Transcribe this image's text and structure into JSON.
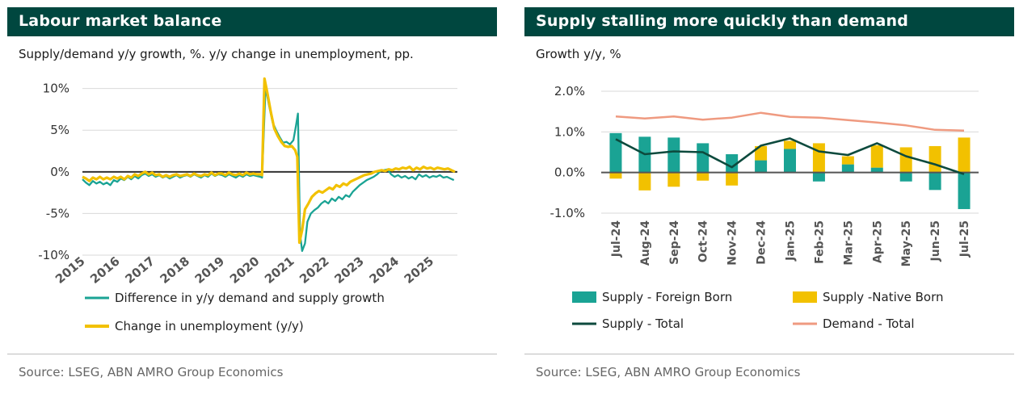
{
  "panels": [
    {
      "title": "Labour market balance",
      "subtitle": "Supply/demand y/y growth, %. y/y change in unemployment, pp.",
      "source": "Source: LSEG, ABN AMRO Group Economics"
    },
    {
      "title": "Supply stalling more quickly than demand",
      "subtitle": "Growth y/y, %",
      "source": "Source: LSEG, ABN AMRO Group Economics"
    }
  ],
  "chart_data": [
    {
      "type": "line",
      "title": "Labour market balance",
      "subtitle": "Supply/demand y/y growth, %. y/y change in unemployment, pp.",
      "xlabel": "",
      "ylabel": "",
      "x_tick_labels": [
        "2015",
        "2016",
        "2017",
        "2018",
        "2019",
        "2020",
        "2021",
        "2022",
        "2023",
        "2024",
        "2025"
      ],
      "y_tick_labels": [
        "10%",
        "5%",
        "0%",
        "-5%",
        "-10%"
      ],
      "y_ticks": [
        10,
        5,
        0,
        -5,
        -10
      ],
      "xlim": [
        2015.0,
        2025.75
      ],
      "ylim": [
        -10,
        12
      ],
      "grid": "horizontal",
      "legend_position": "bottom",
      "colors": {
        "difference": "#1aa394",
        "unemployment": "#f2c100"
      },
      "series": [
        {
          "name": "Difference in y/y demand and supply growth",
          "points": [
            [
              2015.0,
              -0.9
            ],
            [
              2015.1,
              -1.3
            ],
            [
              2015.2,
              -1.6
            ],
            [
              2015.3,
              -1.1
            ],
            [
              2015.4,
              -1.4
            ],
            [
              2015.5,
              -1.2
            ],
            [
              2015.6,
              -1.5
            ],
            [
              2015.7,
              -1.3
            ],
            [
              2015.8,
              -1.6
            ],
            [
              2015.9,
              -1.0
            ],
            [
              2016.0,
              -1.2
            ],
            [
              2016.1,
              -0.8
            ],
            [
              2016.2,
              -1.0
            ],
            [
              2016.3,
              -0.6
            ],
            [
              2016.4,
              -0.9
            ],
            [
              2016.5,
              -0.5
            ],
            [
              2016.6,
              -0.8
            ],
            [
              2016.7,
              -0.4
            ],
            [
              2016.8,
              -0.2
            ],
            [
              2016.9,
              -0.5
            ],
            [
              2017.0,
              -0.3
            ],
            [
              2017.1,
              -0.6
            ],
            [
              2017.2,
              -0.4
            ],
            [
              2017.3,
              -0.7
            ],
            [
              2017.4,
              -0.5
            ],
            [
              2017.5,
              -0.8
            ],
            [
              2017.6,
              -0.6
            ],
            [
              2017.7,
              -0.4
            ],
            [
              2017.8,
              -0.7
            ],
            [
              2017.9,
              -0.5
            ],
            [
              2018.0,
              -0.4
            ],
            [
              2018.1,
              -0.6
            ],
            [
              2018.2,
              -0.3
            ],
            [
              2018.3,
              -0.5
            ],
            [
              2018.4,
              -0.7
            ],
            [
              2018.5,
              -0.4
            ],
            [
              2018.6,
              -0.6
            ],
            [
              2018.7,
              -0.2
            ],
            [
              2018.8,
              -0.5
            ],
            [
              2018.9,
              -0.3
            ],
            [
              2019.0,
              -0.4
            ],
            [
              2019.1,
              -0.6
            ],
            [
              2019.2,
              -0.3
            ],
            [
              2019.3,
              -0.5
            ],
            [
              2019.4,
              -0.7
            ],
            [
              2019.5,
              -0.4
            ],
            [
              2019.6,
              -0.6
            ],
            [
              2019.7,
              -0.3
            ],
            [
              2019.8,
              -0.5
            ],
            [
              2019.9,
              -0.4
            ],
            [
              2020.0,
              -0.5
            ],
            [
              2020.1,
              -0.6
            ],
            [
              2020.15,
              -0.7
            ],
            [
              2020.25,
              10.2
            ],
            [
              2020.35,
              8.0
            ],
            [
              2020.45,
              6.0
            ],
            [
              2020.55,
              5.0
            ],
            [
              2020.65,
              4.2
            ],
            [
              2020.75,
              3.5
            ],
            [
              2020.85,
              3.6
            ],
            [
              2020.95,
              3.3
            ],
            [
              2021.05,
              3.8
            ],
            [
              2021.12,
              5.5
            ],
            [
              2021.18,
              7.0
            ],
            [
              2021.24,
              -7.5
            ],
            [
              2021.3,
              -9.5
            ],
            [
              2021.38,
              -8.6
            ],
            [
              2021.45,
              -6.0
            ],
            [
              2021.55,
              -5.0
            ],
            [
              2021.65,
              -4.6
            ],
            [
              2021.75,
              -4.3
            ],
            [
              2021.85,
              -3.8
            ],
            [
              2021.95,
              -3.5
            ],
            [
              2022.05,
              -3.8
            ],
            [
              2022.15,
              -3.2
            ],
            [
              2022.25,
              -3.5
            ],
            [
              2022.35,
              -3.0
            ],
            [
              2022.45,
              -3.3
            ],
            [
              2022.55,
              -2.8
            ],
            [
              2022.65,
              -3.0
            ],
            [
              2022.75,
              -2.4
            ],
            [
              2022.85,
              -2.0
            ],
            [
              2022.95,
              -1.6
            ],
            [
              2023.05,
              -1.3
            ],
            [
              2023.15,
              -1.0
            ],
            [
              2023.25,
              -0.8
            ],
            [
              2023.35,
              -0.6
            ],
            [
              2023.45,
              -0.3
            ],
            [
              2023.55,
              0.1
            ],
            [
              2023.65,
              0.2
            ],
            [
              2023.75,
              0.3
            ],
            [
              2023.85,
              -0.3
            ],
            [
              2023.95,
              -0.6
            ],
            [
              2024.05,
              -0.4
            ],
            [
              2024.15,
              -0.7
            ],
            [
              2024.25,
              -0.5
            ],
            [
              2024.35,
              -0.8
            ],
            [
              2024.45,
              -0.6
            ],
            [
              2024.55,
              -0.9
            ],
            [
              2024.65,
              -0.3
            ],
            [
              2024.75,
              -0.6
            ],
            [
              2024.85,
              -0.4
            ],
            [
              2024.95,
              -0.7
            ],
            [
              2025.05,
              -0.5
            ],
            [
              2025.15,
              -0.6
            ],
            [
              2025.25,
              -0.4
            ],
            [
              2025.35,
              -0.7
            ],
            [
              2025.45,
              -0.6
            ],
            [
              2025.55,
              -0.8
            ],
            [
              2025.65,
              -1.0
            ]
          ]
        },
        {
          "name": "Change in unemployment (y/y)",
          "points": [
            [
              2015.0,
              -0.6
            ],
            [
              2015.1,
              -0.8
            ],
            [
              2015.2,
              -1.1
            ],
            [
              2015.3,
              -0.7
            ],
            [
              2015.4,
              -0.9
            ],
            [
              2015.5,
              -0.6
            ],
            [
              2015.6,
              -0.9
            ],
            [
              2015.7,
              -0.7
            ],
            [
              2015.8,
              -0.9
            ],
            [
              2015.9,
              -0.6
            ],
            [
              2016.0,
              -0.8
            ],
            [
              2016.1,
              -0.6
            ],
            [
              2016.2,
              -0.9
            ],
            [
              2016.3,
              -0.5
            ],
            [
              2016.4,
              -0.7
            ],
            [
              2016.5,
              -0.3
            ],
            [
              2016.6,
              -0.5
            ],
            [
              2016.7,
              -0.2
            ],
            [
              2016.8,
              0.0
            ],
            [
              2016.9,
              -0.3
            ],
            [
              2017.0,
              -0.1
            ],
            [
              2017.1,
              -0.4
            ],
            [
              2017.2,
              -0.3
            ],
            [
              2017.3,
              -0.6
            ],
            [
              2017.4,
              -0.4
            ],
            [
              2017.5,
              -0.6
            ],
            [
              2017.6,
              -0.4
            ],
            [
              2017.7,
              -0.3
            ],
            [
              2017.8,
              -0.5
            ],
            [
              2017.9,
              -0.4
            ],
            [
              2018.0,
              -0.3
            ],
            [
              2018.1,
              -0.5
            ],
            [
              2018.2,
              -0.2
            ],
            [
              2018.3,
              -0.4
            ],
            [
              2018.4,
              -0.5
            ],
            [
              2018.5,
              -0.3
            ],
            [
              2018.6,
              -0.4
            ],
            [
              2018.7,
              -0.1
            ],
            [
              2018.8,
              -0.4
            ],
            [
              2018.9,
              -0.2
            ],
            [
              2019.0,
              -0.2
            ],
            [
              2019.1,
              -0.4
            ],
            [
              2019.2,
              -0.1
            ],
            [
              2019.3,
              -0.3
            ],
            [
              2019.4,
              -0.4
            ],
            [
              2019.5,
              -0.2
            ],
            [
              2019.6,
              -0.4
            ],
            [
              2019.7,
              -0.1
            ],
            [
              2019.8,
              -0.3
            ],
            [
              2019.9,
              -0.2
            ],
            [
              2020.0,
              -0.3
            ],
            [
              2020.1,
              -0.3
            ],
            [
              2020.15,
              -0.4
            ],
            [
              2020.22,
              11.2
            ],
            [
              2020.3,
              9.5
            ],
            [
              2020.4,
              7.2
            ],
            [
              2020.5,
              5.2
            ],
            [
              2020.6,
              4.3
            ],
            [
              2020.7,
              3.6
            ],
            [
              2020.8,
              3.1
            ],
            [
              2020.9,
              3.0
            ],
            [
              2021.0,
              3.1
            ],
            [
              2021.1,
              2.6
            ],
            [
              2021.16,
              1.8
            ],
            [
              2021.22,
              -8.5
            ],
            [
              2021.3,
              -7.0
            ],
            [
              2021.38,
              -4.5
            ],
            [
              2021.48,
              -3.8
            ],
            [
              2021.58,
              -3.0
            ],
            [
              2021.68,
              -2.6
            ],
            [
              2021.78,
              -2.3
            ],
            [
              2021.88,
              -2.5
            ],
            [
              2021.98,
              -2.2
            ],
            [
              2022.08,
              -1.9
            ],
            [
              2022.18,
              -2.1
            ],
            [
              2022.28,
              -1.6
            ],
            [
              2022.38,
              -1.8
            ],
            [
              2022.48,
              -1.4
            ],
            [
              2022.58,
              -1.6
            ],
            [
              2022.68,
              -1.2
            ],
            [
              2022.78,
              -1.0
            ],
            [
              2022.88,
              -0.8
            ],
            [
              2022.98,
              -0.6
            ],
            [
              2023.08,
              -0.4
            ],
            [
              2023.18,
              -0.3
            ],
            [
              2023.28,
              -0.2
            ],
            [
              2023.38,
              0.0
            ],
            [
              2023.48,
              0.1
            ],
            [
              2023.58,
              0.2
            ],
            [
              2023.68,
              0.1
            ],
            [
              2023.78,
              0.3
            ],
            [
              2023.88,
              0.2
            ],
            [
              2023.98,
              0.4
            ],
            [
              2024.08,
              0.3
            ],
            [
              2024.18,
              0.5
            ],
            [
              2024.28,
              0.4
            ],
            [
              2024.38,
              0.6
            ],
            [
              2024.48,
              0.2
            ],
            [
              2024.58,
              0.5
            ],
            [
              2024.68,
              0.3
            ],
            [
              2024.78,
              0.6
            ],
            [
              2024.88,
              0.4
            ],
            [
              2024.98,
              0.5
            ],
            [
              2025.08,
              0.3
            ],
            [
              2025.18,
              0.5
            ],
            [
              2025.28,
              0.4
            ],
            [
              2025.38,
              0.3
            ],
            [
              2025.48,
              0.4
            ],
            [
              2025.58,
              0.2
            ],
            [
              2025.68,
              0.0
            ]
          ]
        }
      ]
    },
    {
      "type": "bar",
      "stacked": true,
      "title": "Supply stalling more quickly than demand",
      "subtitle": "Growth y/y, %",
      "xlabel": "",
      "ylabel": "",
      "categories": [
        "Jul-24",
        "Aug-24",
        "Sep-24",
        "Oct-24",
        "Nov-24",
        "Dec-24",
        "Jan-25",
        "Feb-25",
        "Mar-25",
        "Apr-25",
        "May-25",
        "Jun-25",
        "Jul-25"
      ],
      "y_tick_labels": [
        "2.0%",
        "1.0%",
        "0.0%",
        "-1.0%"
      ],
      "y_ticks": [
        2.0,
        1.0,
        0.0,
        -1.0
      ],
      "ylim": [
        -1.0,
        2.0
      ],
      "grid": "horizontal",
      "legend_position": "bottom",
      "colors": {
        "foreign": "#1aa394",
        "native": "#f2c100",
        "supply_total": "#0d4a3d",
        "demand_total": "#ef9a80"
      },
      "series": [
        {
          "name": "Supply - Foreign Born",
          "kind": "bar",
          "values": [
            0.97,
            0.88,
            0.86,
            0.72,
            0.45,
            0.3,
            0.58,
            -0.22,
            0.2,
            0.12,
            -0.22,
            -0.43,
            -0.9
          ]
        },
        {
          "name": "Supply -Native Born",
          "kind": "bar",
          "values": [
            -0.15,
            -0.44,
            -0.35,
            -0.2,
            -0.32,
            0.35,
            0.2,
            0.72,
            0.2,
            0.55,
            0.62,
            0.65,
            0.86
          ]
        },
        {
          "name": "Supply - Total",
          "kind": "line",
          "values": [
            0.82,
            0.45,
            0.52,
            0.5,
            0.13,
            0.66,
            0.84,
            0.52,
            0.43,
            0.72,
            0.4,
            0.2,
            -0.04
          ]
        },
        {
          "name": "Demand - Total",
          "kind": "line",
          "values": [
            1.38,
            1.33,
            1.38,
            1.3,
            1.35,
            1.47,
            1.37,
            1.35,
            1.29,
            1.23,
            1.16,
            1.05,
            1.03
          ]
        }
      ]
    }
  ]
}
